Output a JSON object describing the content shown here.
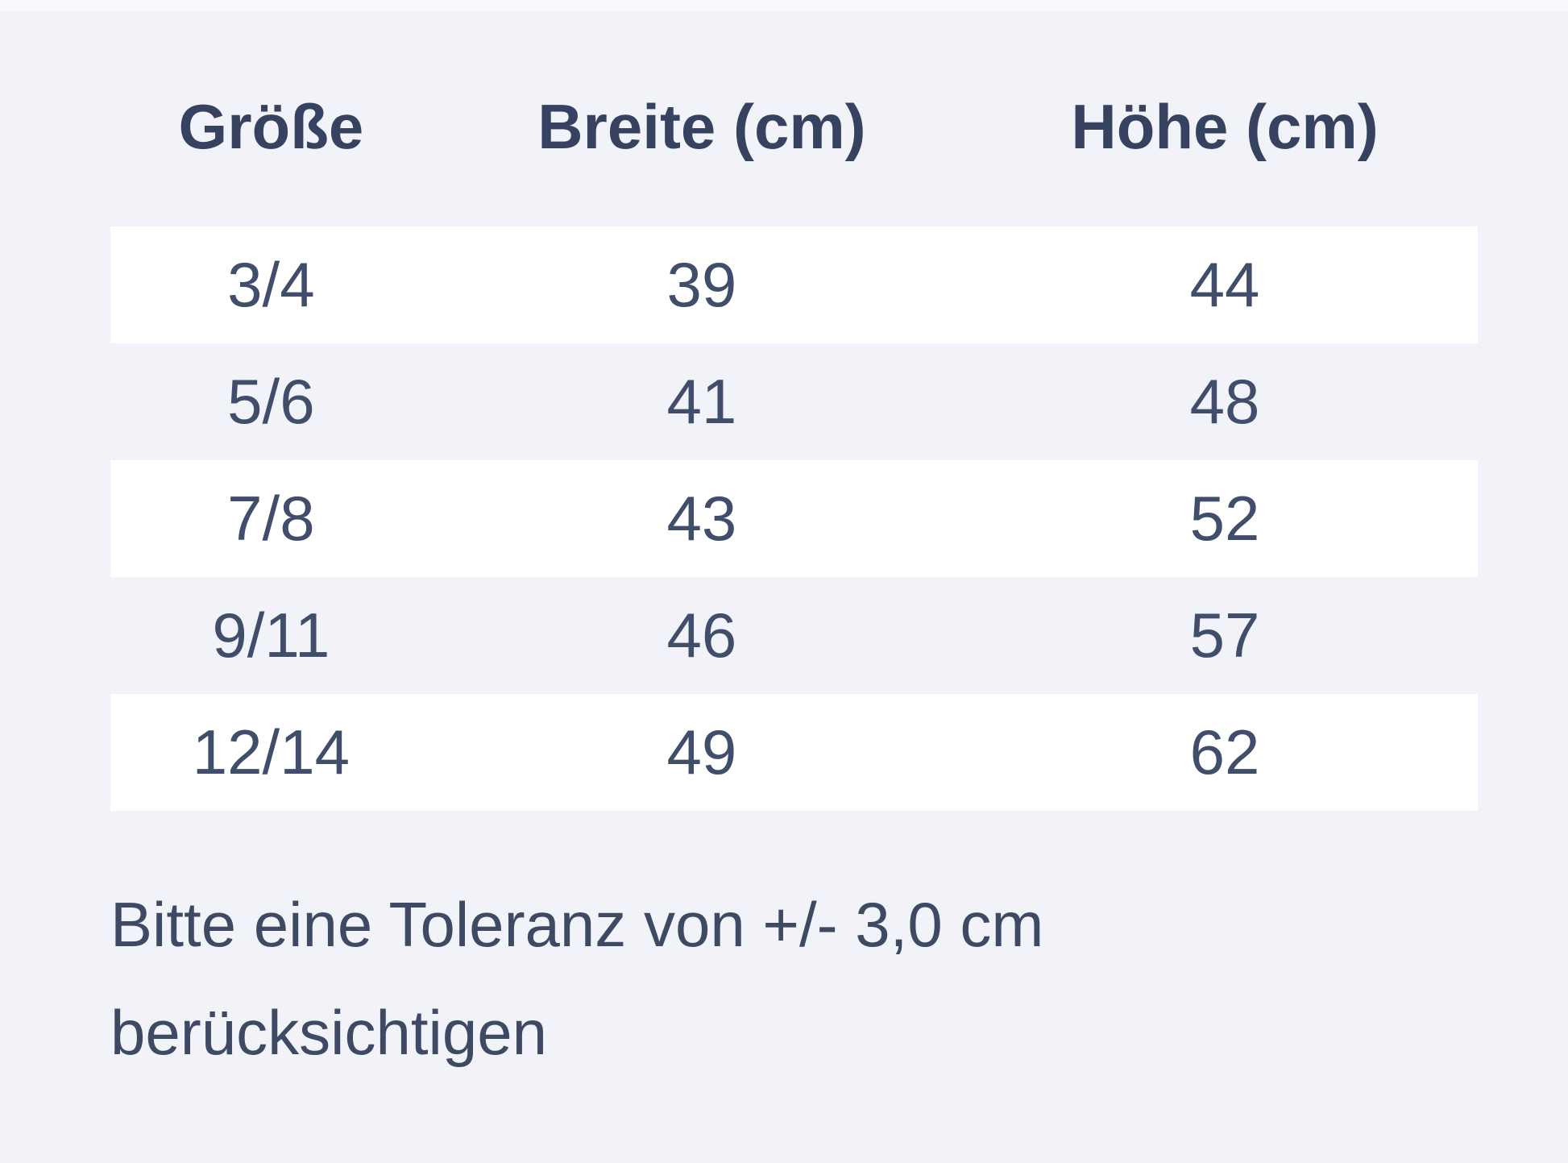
{
  "page": {
    "background_color": "#f1f3f8",
    "top_strip_color": "#f8f9fc",
    "row_stripe_color": "#ffffff",
    "header_text_color": "#364260",
    "body_text_color": "#404d6b",
    "note_text_color": "#3e4a64"
  },
  "table": {
    "headers": [
      "Größe",
      "Breite (cm)",
      "Höhe (cm)"
    ],
    "rows": [
      [
        "3/4",
        "39",
        "44"
      ],
      [
        "5/6",
        "41",
        "48"
      ],
      [
        "7/8",
        "43",
        "52"
      ],
      [
        "9/11",
        "46",
        "57"
      ],
      [
        "12/14",
        "49",
        "62"
      ]
    ]
  },
  "note": {
    "line1": "Bitte eine Toleranz von +/- 3,0 cm",
    "line2": "berücksichtigen"
  },
  "chart_data": {
    "type": "table",
    "title": "",
    "columns": [
      "Größe",
      "Breite (cm)",
      "Höhe (cm)"
    ],
    "rows": [
      [
        "3/4",
        39,
        44
      ],
      [
        "5/6",
        41,
        48
      ],
      [
        "7/8",
        43,
        52
      ],
      [
        "9/11",
        46,
        57
      ],
      [
        "12/14",
        49,
        62
      ]
    ],
    "note": "Bitte eine Toleranz von +/- 3,0 cm berücksichtigen",
    "layout": {
      "zebra_striping": true,
      "stripe_rows": "odd rows white",
      "grid": false
    }
  }
}
